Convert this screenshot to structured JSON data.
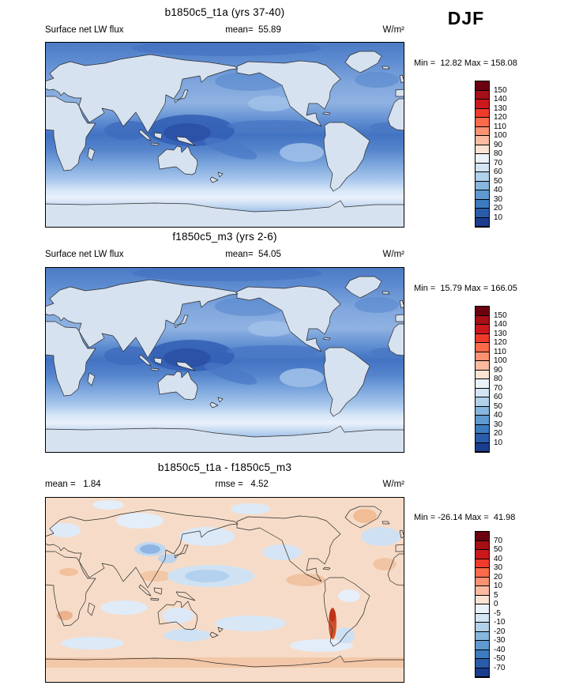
{
  "season_label": "DJF",
  "panels": [
    {
      "title": "b1850c5_t1a (yrs 37-40)",
      "header_left": "Surface net LW flux",
      "header_center": "mean=  55.89",
      "header_right": "W/m²",
      "stats_line": "Min =  12.82 Max = 158.08"
    },
    {
      "title": "f1850c5_m3 (yrs 2-6)",
      "header_left": "Surface net LW flux",
      "header_center": "mean=  54.05",
      "header_right": "W/m²",
      "stats_line": "Min =  15.79 Max = 166.05"
    },
    {
      "title": "b1850c5_t1a - f1850c5_m3",
      "header_left": "mean =   1.84",
      "header_center": "rmse =   4.52",
      "header_right": "W/m²",
      "stats_line": "Min = -26.14 Max =  41.98"
    }
  ],
  "chart_data": [
    {
      "type": "heatmap",
      "projection": "global lat-lon world map, 0-360E (Pacific-centered)",
      "title": "b1850c5_t1a (yrs 37-40)",
      "variable": "Surface net LW flux",
      "season": "DJF",
      "units": "W/m2",
      "stats": {
        "mean": 55.89,
        "min": 12.82,
        "max": 158.08
      },
      "colorbar": {
        "levels": [
          150,
          140,
          130,
          120,
          110,
          100,
          90,
          80,
          70,
          60,
          50,
          40,
          30,
          20,
          10
        ],
        "colors": [
          "#6b0010",
          "#a50f15",
          "#cb181d",
          "#ef3b2c",
          "#fb6a4a",
          "#fc9272",
          "#fcbba1",
          "#fbe3d4",
          "#eaf1f9",
          "#d3e4f4",
          "#b1d0ea",
          "#87b6de",
          "#5f99d0",
          "#3c7bc0",
          "#2a5ca9",
          "#1a3d8f"
        ]
      }
    },
    {
      "type": "heatmap",
      "projection": "global lat-lon world map, 0-360E (Pacific-centered)",
      "title": "f1850c5_m3 (yrs 2-6)",
      "variable": "Surface net LW flux",
      "season": "DJF",
      "units": "W/m2",
      "stats": {
        "mean": 54.05,
        "min": 15.79,
        "max": 166.05
      },
      "colorbar": {
        "levels": [
          150,
          140,
          130,
          120,
          110,
          100,
          90,
          80,
          70,
          60,
          50,
          40,
          30,
          20,
          10
        ],
        "colors": [
          "#6b0010",
          "#a50f15",
          "#cb181d",
          "#ef3b2c",
          "#fb6a4a",
          "#fc9272",
          "#fcbba1",
          "#fbe3d4",
          "#eaf1f9",
          "#d3e4f4",
          "#b1d0ea",
          "#87b6de",
          "#5f99d0",
          "#3c7bc0",
          "#2a5ca9",
          "#1a3d8f"
        ]
      }
    },
    {
      "type": "heatmap",
      "projection": "global lat-lon world map, 0-360E (Pacific-centered)",
      "title": "b1850c5_t1a - f1850c5_m3",
      "variable": "Surface net LW flux difference",
      "season": "DJF",
      "units": "W/m2",
      "stats": {
        "mean": 1.84,
        "rmse": 4.52,
        "min": -26.14,
        "max": 41.98
      },
      "colorbar": {
        "levels": [
          70,
          50,
          40,
          30,
          20,
          10,
          5,
          0,
          -5,
          -10,
          -20,
          -30,
          -40,
          -50,
          -70
        ],
        "colors": [
          "#6b0010",
          "#a50f15",
          "#cb181d",
          "#ef3b2c",
          "#fb6a4a",
          "#fc9272",
          "#fcbba1",
          "#fbe3d4",
          "#eaf1f9",
          "#d3e4f4",
          "#b1d0ea",
          "#87b6de",
          "#5f99d0",
          "#3c7bc0",
          "#2a5ca9",
          "#1a3d8f"
        ]
      }
    }
  ]
}
